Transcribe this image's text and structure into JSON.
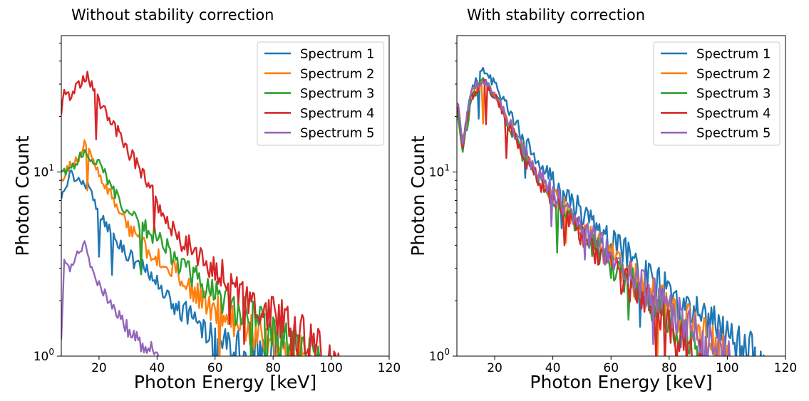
{
  "chart_data": [
    {
      "type": "line",
      "title": "Without stability correction",
      "xlabel": "Photon Energy [keV]",
      "ylabel": "Photon Count",
      "xlim": [
        7,
        120
      ],
      "ylim": [
        1,
        55
      ],
      "yscale": "log",
      "x_ticks": [
        20,
        40,
        60,
        80,
        100,
        120
      ],
      "y_ticks": [
        {
          "value": 1,
          "base": "10",
          "exp": "0"
        },
        {
          "value": 10,
          "base": "10",
          "exp": "1"
        }
      ],
      "grid": false,
      "legend_position": "top-right",
      "series": [
        {
          "name": "Spectrum 1",
          "color": "#1f77b4",
          "x": [
            7,
            10,
            13,
            16,
            20,
            25,
            30,
            35,
            40,
            45,
            50,
            55,
            60,
            65,
            70,
            75,
            80
          ],
          "y": [
            7,
            10,
            9,
            8.5,
            6,
            4.5,
            3.5,
            3,
            2.5,
            2,
            1.7,
            1.5,
            1.3,
            1.2,
            1.1,
            1.05,
            1.0
          ]
        },
        {
          "name": "Spectrum 2",
          "color": "#ff7f0e",
          "x": [
            7,
            10,
            13,
            15,
            20,
            25,
            30,
            35,
            40,
            45,
            50,
            55,
            60,
            65,
            70,
            75,
            80,
            85,
            90
          ],
          "y": [
            9,
            11,
            12,
            14,
            10,
            7,
            5,
            4,
            3.5,
            3,
            2.5,
            2,
            1.8,
            1.6,
            1.5,
            1.3,
            1.2,
            1.1,
            1.0
          ]
        },
        {
          "name": "Spectrum 3",
          "color": "#2ca02c",
          "x": [
            7,
            10,
            13,
            15,
            20,
            25,
            30,
            35,
            40,
            45,
            50,
            55,
            60,
            65,
            70,
            75,
            80,
            85,
            90,
            95
          ],
          "y": [
            10,
            10,
            12,
            13,
            11,
            8,
            6,
            5,
            4.5,
            3.5,
            3,
            2.5,
            2.2,
            1.9,
            1.7,
            1.5,
            1.3,
            1.2,
            1.1,
            1.0
          ]
        },
        {
          "name": "Spectrum 4",
          "color": "#d62728",
          "x": [
            7,
            8,
            10,
            13,
            16,
            18,
            20,
            25,
            30,
            35,
            40,
            45,
            50,
            55,
            60,
            65,
            70,
            75,
            80,
            85,
            90,
            95,
            100
          ],
          "y": [
            20,
            28,
            26,
            30,
            33,
            28,
            24,
            18,
            13,
            10,
            7,
            5,
            4,
            3.5,
            3,
            2.5,
            2.2,
            1.9,
            1.7,
            1.5,
            1.3,
            1.15,
            1.0
          ]
        },
        {
          "name": "Spectrum 5",
          "color": "#9467bd",
          "x": [
            7,
            8,
            10,
            13,
            15,
            18,
            20,
            25,
            30,
            35,
            40
          ],
          "y": [
            1.2,
            3.5,
            3,
            3.8,
            4,
            2.8,
            2.5,
            1.8,
            1.4,
            1.15,
            1.0
          ]
        }
      ]
    },
    {
      "type": "line",
      "title": "With stability correction",
      "xlabel": "Photon Energy [keV]",
      "ylabel": "Photon Count",
      "xlim": [
        7,
        120
      ],
      "ylim": [
        1,
        55
      ],
      "yscale": "log",
      "x_ticks": [
        20,
        40,
        60,
        80,
        100,
        120
      ],
      "y_ticks": [
        {
          "value": 1,
          "base": "10",
          "exp": "0"
        },
        {
          "value": 10,
          "base": "10",
          "exp": "1"
        }
      ],
      "grid": false,
      "legend_position": "top-right",
      "series": [
        {
          "name": "Spectrum 1",
          "color": "#1f77b4",
          "x": [
            7,
            9,
            12,
            16,
            20,
            25,
            30,
            40,
            50,
            60,
            70,
            80,
            90,
            100,
            110
          ],
          "y": [
            22,
            15,
            28,
            37,
            30,
            22,
            15,
            9,
            6,
            4.2,
            3,
            2.2,
            1.7,
            1.3,
            1.0
          ]
        },
        {
          "name": "Spectrum 2",
          "color": "#ff7f0e",
          "x": [
            7,
            9,
            12,
            16,
            20,
            25,
            30,
            40,
            50,
            60,
            70,
            80,
            90,
            100
          ],
          "y": [
            23,
            14,
            26,
            32,
            27,
            19,
            13,
            7.5,
            5,
            3.5,
            2.4,
            1.8,
            1.35,
            1.0
          ]
        },
        {
          "name": "Spectrum 3",
          "color": "#2ca02c",
          "x": [
            7,
            9,
            12,
            16,
            20,
            25,
            30,
            40,
            50,
            60,
            70,
            80,
            90
          ],
          "y": [
            23,
            13,
            25,
            31,
            26,
            18,
            12,
            7,
            4.6,
            3.2,
            2.2,
            1.6,
            1.0
          ]
        },
        {
          "name": "Spectrum 4",
          "color": "#d62728",
          "x": [
            7,
            9,
            12,
            16,
            20,
            25,
            30,
            40,
            50,
            60,
            70,
            80,
            90
          ],
          "y": [
            24,
            14,
            26,
            31,
            26,
            18,
            12,
            7,
            4.5,
            3,
            2.1,
            1.5,
            1.0
          ]
        },
        {
          "name": "Spectrum 5",
          "color": "#9467bd",
          "x": [
            7,
            9,
            12,
            16,
            20,
            25,
            30,
            40,
            50,
            60,
            70,
            80,
            90,
            100
          ],
          "y": [
            25,
            15,
            27,
            32,
            27,
            19,
            13,
            7.8,
            5,
            3.5,
            2.5,
            1.8,
            1.3,
            1.0
          ]
        }
      ]
    }
  ]
}
